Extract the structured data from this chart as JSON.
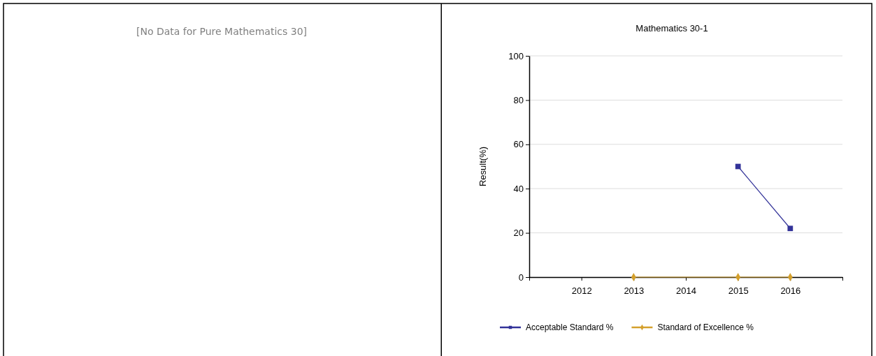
{
  "chart_data": [
    {
      "type": "other",
      "title": "[No Data for Pure Mathematics 30]"
    },
    {
      "type": "line",
      "title": "Mathematics 30-1",
      "ylabel": "Result(%)",
      "x": [
        2013,
        2015,
        2016
      ],
      "xlim": [
        2011,
        2017
      ],
      "xticks": [
        {
          "value": 2011,
          "label": null
        },
        2012,
        2013,
        2014,
        2015,
        2016,
        {
          "value": 2017,
          "label": null
        }
      ],
      "ylim": [
        0,
        100
      ],
      "yticks": [
        0,
        20,
        40,
        60,
        80,
        100
      ],
      "grid": "y",
      "legend": "bottom",
      "series": [
        {
          "name": "Acceptable Standard %",
          "color": "#333399",
          "values": [
            null,
            50,
            22
          ],
          "marker": "square"
        },
        {
          "name": "Standard of Excellence %",
          "color": "#d4a02c",
          "values": [
            0,
            0,
            0
          ],
          "marker": "diamond"
        }
      ]
    }
  ]
}
